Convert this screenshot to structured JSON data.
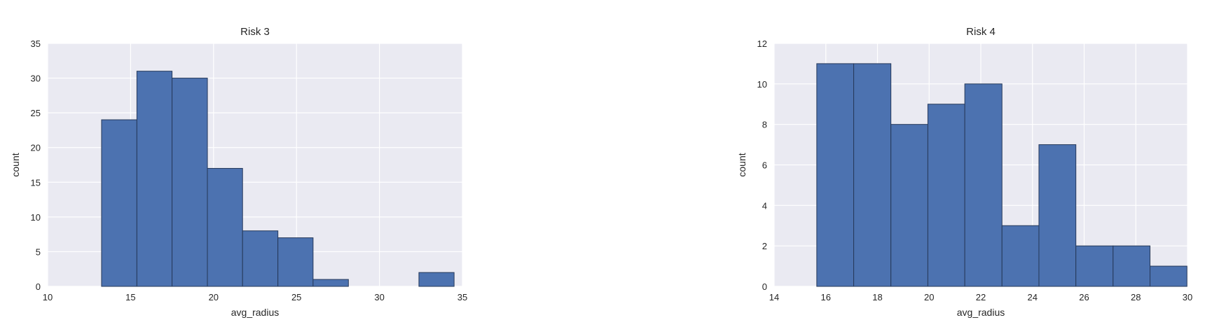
{
  "colors": {
    "figure_background": "#ffffff",
    "axes_background": "#eaeaf2",
    "grid": "#ffffff",
    "bar_fill": "#4c72b0",
    "bar_edge": "#26395a",
    "text": "#262626"
  },
  "chart_data": [
    {
      "type": "bar",
      "title": "Risk 3",
      "xlabel": "avg_radius",
      "ylabel": "count",
      "xlim": [
        10,
        35
      ],
      "ylim": [
        0,
        35
      ],
      "xticks": [
        "10",
        "15",
        "20",
        "25",
        "30",
        "35"
      ],
      "yticks": [
        "0",
        "5",
        "10",
        "15",
        "20",
        "25",
        "30",
        "35"
      ],
      "grid": true,
      "bin_edges": [
        13.25,
        15.38,
        17.5,
        19.63,
        21.75,
        23.88,
        26.0,
        28.13,
        30.25,
        32.38,
        34.5
      ],
      "values": [
        24,
        31,
        30,
        17,
        8,
        7,
        1,
        0,
        0,
        2
      ]
    },
    {
      "type": "bar",
      "title": "Risk 4",
      "xlabel": "avg_radius",
      "ylabel": "count",
      "xlim": [
        14,
        30
      ],
      "ylim": [
        0,
        12
      ],
      "xticks": [
        "14",
        "16",
        "18",
        "20",
        "22",
        "24",
        "26",
        "28",
        "30"
      ],
      "yticks": [
        "0",
        "2",
        "4",
        "6",
        "8",
        "10",
        "12"
      ],
      "grid": true,
      "bin_edges": [
        15.65,
        17.08,
        18.52,
        19.95,
        21.38,
        22.82,
        24.25,
        25.68,
        27.12,
        28.55,
        29.98
      ],
      "values": [
        11,
        11,
        8,
        9,
        10,
        3,
        7,
        2,
        2,
        1
      ]
    }
  ]
}
